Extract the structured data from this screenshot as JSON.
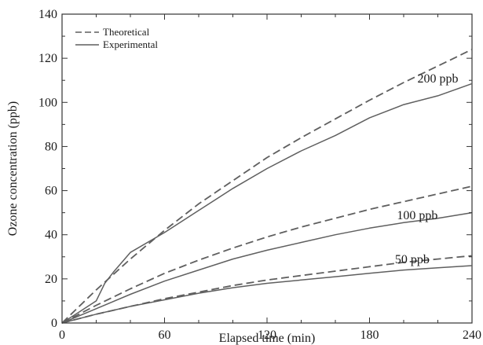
{
  "chart_data": {
    "type": "line",
    "xlabel": "Elapsed time (min)",
    "ylabel": "Ozone concentration (ppb)",
    "xlim": [
      0,
      240
    ],
    "ylim": [
      0,
      140
    ],
    "x_ticks": [
      0,
      60,
      120,
      180,
      240
    ],
    "y_ticks": [
      0,
      20,
      40,
      60,
      80,
      100,
      120,
      140
    ],
    "x_minor_step": 20,
    "y_minor_step": 10,
    "grid": false,
    "legend_position": "top-left",
    "legend": [
      {
        "label": "Theoretical",
        "style": "dashed"
      },
      {
        "label": "Experimental",
        "style": "solid"
      }
    ],
    "annotations": [
      {
        "text": "200 ppb",
        "x": 220,
        "y": 109
      },
      {
        "text": "100 ppb",
        "x": 208,
        "y": 47
      },
      {
        "text": "50 ppb",
        "x": 205,
        "y": 27
      }
    ],
    "series": [
      {
        "legend": "Theoretical",
        "label": "200 ppb",
        "style": "dashed",
        "x": [
          0,
          20,
          40,
          60,
          80,
          100,
          120,
          140,
          160,
          180,
          200,
          220,
          240
        ],
        "y": [
          0,
          15,
          29,
          42,
          54,
          64.5,
          75,
          84,
          92.5,
          101,
          109,
          116.5,
          124
        ]
      },
      {
        "legend": "Experimental",
        "label": "200 ppb",
        "style": "solid",
        "x": [
          0,
          10,
          20,
          25,
          30,
          40,
          60,
          80,
          100,
          120,
          140,
          160,
          180,
          200,
          220,
          240
        ],
        "y": [
          0,
          5,
          10,
          18,
          23,
          32,
          41,
          51,
          61,
          70,
          78,
          85,
          93,
          99,
          103,
          108.5
        ]
      },
      {
        "legend": "Theoretical",
        "label": "100 ppb",
        "style": "dashed",
        "x": [
          0,
          20,
          40,
          60,
          80,
          100,
          120,
          140,
          160,
          180,
          200,
          220,
          240
        ],
        "y": [
          0,
          8,
          15.5,
          22.5,
          28.5,
          34,
          39,
          43.5,
          47.5,
          51.5,
          55,
          58.5,
          62
        ]
      },
      {
        "legend": "Experimental",
        "label": "100 ppb",
        "style": "solid",
        "x": [
          0,
          20,
          40,
          60,
          80,
          100,
          120,
          140,
          160,
          180,
          200,
          220,
          240
        ],
        "y": [
          0,
          6.5,
          13,
          19,
          24,
          29,
          33,
          36.5,
          40,
          43,
          45.5,
          47.5,
          50
        ]
      },
      {
        "legend": "Theoretical",
        "label": "50 ppb",
        "style": "dashed",
        "x": [
          0,
          20,
          40,
          60,
          80,
          100,
          120,
          140,
          160,
          180,
          200,
          220,
          240
        ],
        "y": [
          0,
          4,
          7.5,
          11,
          14,
          17,
          19.5,
          21.5,
          23.5,
          25.5,
          27.5,
          29,
          30.5
        ]
      },
      {
        "legend": "Experimental",
        "label": "50 ppb",
        "style": "solid",
        "x": [
          0,
          20,
          40,
          60,
          80,
          100,
          120,
          140,
          160,
          180,
          200,
          220,
          240
        ],
        "y": [
          0,
          4,
          7.5,
          10.5,
          13.5,
          16,
          18,
          19.5,
          21,
          22.5,
          24,
          25,
          26
        ]
      }
    ]
  }
}
